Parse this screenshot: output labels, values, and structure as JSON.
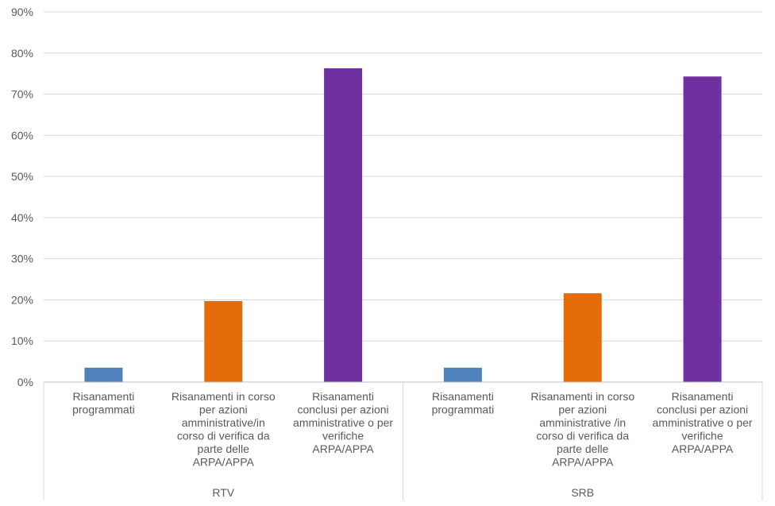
{
  "chart_data": {
    "type": "bar",
    "title": "",
    "xlabel": "",
    "ylabel": "",
    "ylim": [
      0,
      90
    ],
    "y_ticks": [
      "0%",
      "10%",
      "20%",
      "30%",
      "40%",
      "50%",
      "60%",
      "70%",
      "80%",
      "90%"
    ],
    "grid": true,
    "groups": [
      {
        "name": "RTV",
        "categories": [
          {
            "label": [
              "Risanamenti",
              "programmati"
            ],
            "value": 3.5,
            "color": "#4f81bd"
          },
          {
            "label": [
              "Risanamenti in corso",
              "per azioni",
              "amministrative/in",
              "corso di verifica da",
              "parte delle",
              "ARPA/APPA"
            ],
            "value": 19.7,
            "color": "#e46c0a"
          },
          {
            "label": [
              "Risanamenti",
              "conclusi per azioni",
              "amministrative o per",
              "verifiche",
              "ARPA/APPA"
            ],
            "value": 76.3,
            "color": "#7030a0"
          }
        ]
      },
      {
        "name": "SRB",
        "categories": [
          {
            "label": [
              "Risanamenti",
              "programmati"
            ],
            "value": 3.5,
            "color": "#4f81bd"
          },
          {
            "label": [
              "Risanamenti in corso",
              "per azioni",
              "amministrative /in",
              "corso di verifica da",
              "parte delle",
              "ARPA/APPA"
            ],
            "value": 21.6,
            "color": "#e46c0a"
          },
          {
            "label": [
              "Risanamenti",
              "conclusi per azioni",
              "amministrative o per",
              "verifiche",
              "ARPA/APPA"
            ],
            "value": 74.3,
            "color": "#7030a0"
          }
        ]
      }
    ]
  }
}
